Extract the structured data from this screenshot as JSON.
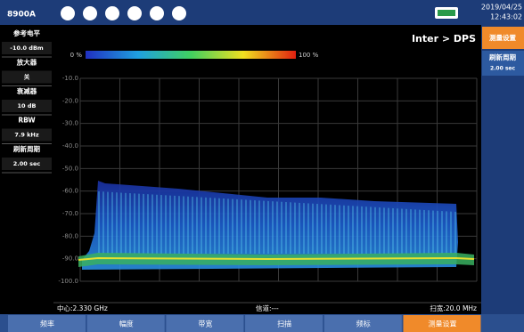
{
  "top_bar": {
    "model": "8900A",
    "date": "2019/04/25",
    "time": "12:43:02"
  },
  "left_panel": {
    "items": [
      {
        "label": "参考电平",
        "value": "-10.0 dBm"
      },
      {
        "label": "放大器",
        "value": "关"
      },
      {
        "label": "衰减器",
        "value": "10 dB"
      },
      {
        "label": "RBW",
        "value": "7.9 kHz"
      },
      {
        "label": "刷新周期",
        "value": "2.00 sec"
      }
    ]
  },
  "display": {
    "title": "Inter > DPS",
    "colorbar": {
      "min_label": "0 %",
      "max_label": "100 %"
    },
    "yticks": [
      "-10.0",
      "-20.0",
      "-30.0",
      "-40.0",
      "-50.0",
      "-60.0",
      "-70.0",
      "-80.0",
      "-90.0",
      "-100.0"
    ],
    "center": "中心:2.330 GHz",
    "channel": "信道:---",
    "span": "扫宽:20.0 MHz"
  },
  "right_panel": {
    "buttons": [
      {
        "label": "测量设置"
      },
      {
        "label": "刷新周期",
        "value": "2.00 sec"
      }
    ]
  },
  "tabs": [
    "频率",
    "幅度",
    "带宽",
    "扫描",
    "频标",
    "测量设置"
  ]
}
